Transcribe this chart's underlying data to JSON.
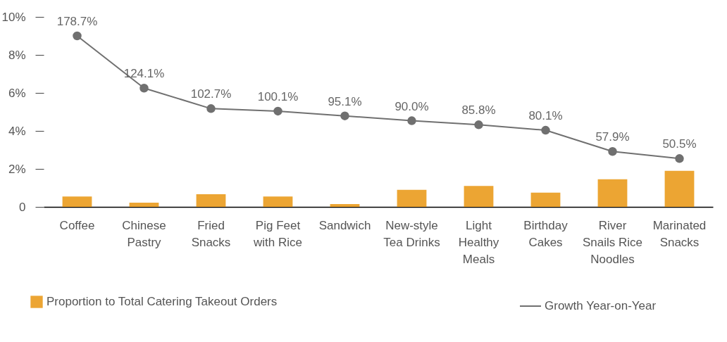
{
  "chart_data": {
    "type": "bar",
    "categories": [
      "Coffee",
      "Chinese Pastry",
      "Fried Snacks",
      "Pig Feet with Rice",
      "Sandwich",
      "New-style Tea Drinks",
      "Light Healthy Meals",
      "Birthday Cakes",
      "River Snails Rice Noodles",
      "Marinated Snacks"
    ],
    "series": [
      {
        "name": "Proportion to Total Catering Takeout Orders",
        "color": "#eca533",
        "values": [
          0.55,
          0.22,
          0.67,
          0.55,
          0.15,
          0.9,
          1.1,
          0.75,
          1.45,
          1.9
        ]
      },
      {
        "name": "Growth Year-on-Year",
        "type": "line",
        "axis": "y2",
        "color": "#707070",
        "values": [
          178.7,
          124.1,
          102.7,
          100.1,
          95.1,
          90.0,
          85.8,
          80.1,
          57.9,
          50.5
        ],
        "value_labels": [
          "178.7%",
          "124.1%",
          "102.7%",
          "100.1%",
          "95.1%",
          "90.0%",
          "85.8%",
          "80.1%",
          "57.9%",
          "50.5%"
        ]
      }
    ],
    "ylim": [
      0,
      10
    ],
    "yticks": [
      0,
      {
        "value": 2,
        "label": "2%"
      },
      {
        "value": 4,
        "label": "4%"
      },
      {
        "value": 6,
        "label": "6%"
      },
      {
        "value": 8,
        "label": "8%"
      },
      {
        "value": 10,
        "label": "10%"
      }
    ],
    "tick_labels": "xy",
    "marker": "circle",
    "legend": "bottom"
  }
}
